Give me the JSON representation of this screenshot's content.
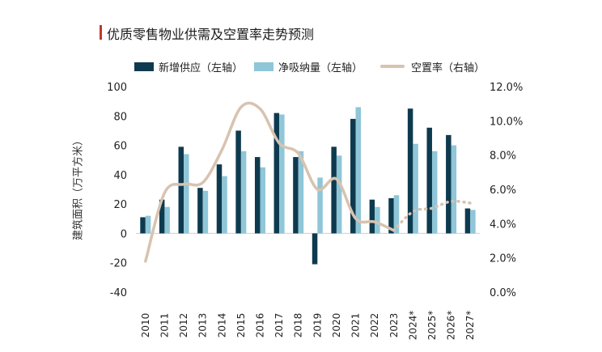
{
  "chart_data": {
    "type": "bar",
    "title": "优质零售物业供需及空置率走势预测",
    "ylabel": "建筑面积（万平方米）",
    "ylim": [
      -40,
      100
    ],
    "y_ticks": [
      "100",
      "80",
      "60",
      "40",
      "20",
      "0",
      "-20",
      "-40"
    ],
    "y2lim": [
      0,
      12
    ],
    "y2_ticks": [
      "12.0%",
      "10.0%",
      "8.0%",
      "6.0%",
      "4.0%",
      "2.0%",
      "0.0%"
    ],
    "categories": [
      "2010",
      "2011",
      "2012",
      "2013",
      "2014",
      "2015",
      "2016",
      "2017",
      "2018",
      "2019",
      "2020",
      "2021",
      "2022",
      "2023",
      "2024*",
      "2025*",
      "2026*",
      "2027*"
    ],
    "series": [
      {
        "name": "新增供应（左轴）",
        "type": "bar",
        "axis": "left",
        "color": "#0e3a4f",
        "values": [
          11,
          23,
          59,
          31,
          47,
          70,
          52,
          82,
          52,
          -21,
          59,
          78,
          23,
          24,
          85,
          72,
          67,
          17
        ]
      },
      {
        "name": "净吸纳量（左轴）",
        "type": "bar",
        "axis": "left",
        "color": "#8fc6d8",
        "values": [
          12,
          18,
          54,
          29,
          39,
          56,
          45,
          81,
          56,
          38,
          53,
          86,
          18,
          26,
          61,
          56,
          60,
          16
        ]
      },
      {
        "name": "空置率（右轴）",
        "type": "line",
        "axis": "right",
        "color": "#d8c3b0",
        "values": [
          1.8,
          5.8,
          6.3,
          6.4,
          8.3,
          10.8,
          10.7,
          8.7,
          8.1,
          6.0,
          6.6,
          4.3,
          4.1,
          3.6,
          4.7,
          4.9,
          5.3,
          5.2
        ],
        "forecast_from": "2023"
      }
    ],
    "legend_position": "top",
    "grid": false
  }
}
